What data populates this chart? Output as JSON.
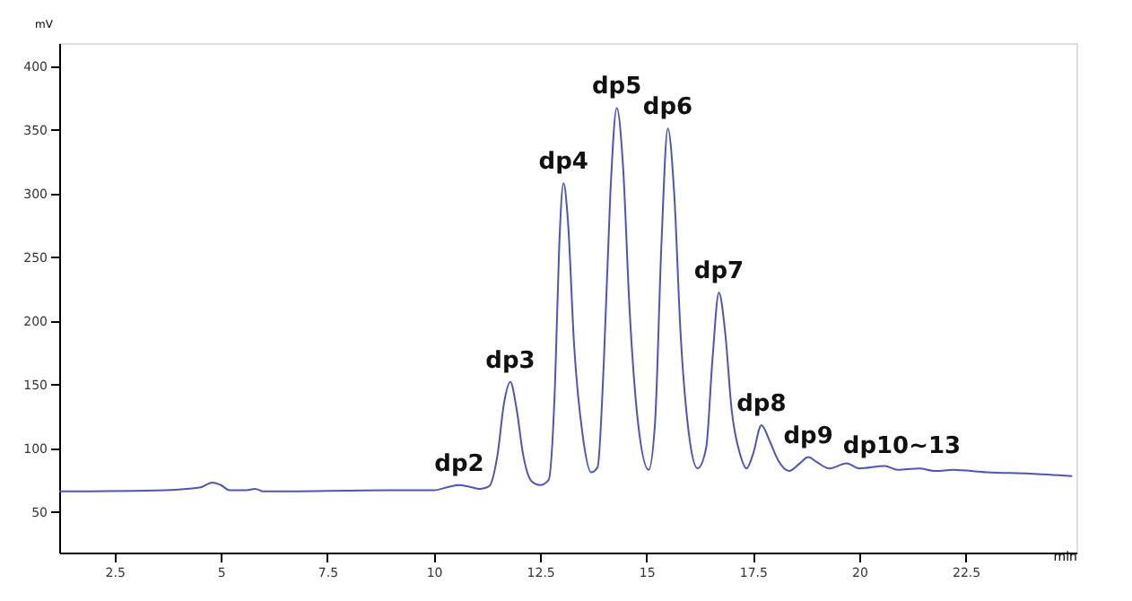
{
  "chart_data": {
    "type": "line",
    "xlabel": "min",
    "ylabel": "mV",
    "x": [
      1.2,
      3.7,
      4.5,
      4.8,
      5.0,
      5.2,
      5.6,
      5.8,
      6.0,
      9.0,
      10.0,
      10.4,
      10.6,
      10.8,
      11.1,
      11.3,
      11.5,
      11.65,
      11.8,
      11.95,
      12.1,
      12.3,
      12.5,
      12.7,
      12.85,
      12.95,
      13.05,
      13.15,
      13.3,
      13.5,
      13.7,
      13.85,
      14.0,
      14.15,
      14.3,
      14.45,
      14.6,
      14.8,
      15.05,
      15.2,
      15.35,
      15.5,
      15.65,
      15.8,
      16.0,
      16.2,
      16.4,
      16.55,
      16.7,
      16.85,
      17.0,
      17.2,
      17.35,
      17.5,
      17.7,
      17.9,
      18.1,
      18.35,
      18.6,
      18.8,
      19.0,
      19.3,
      19.7,
      20.0,
      20.6,
      20.9,
      21.4,
      21.8,
      22.2,
      23.0,
      24.0,
      25.0
    ],
    "series": [
      {
        "color": "#4a55c0",
        "values": [
          66,
          67,
          69,
          73,
          71,
          67,
          67,
          68,
          66,
          67,
          67,
          70,
          71,
          70,
          68,
          70,
          95,
          135,
          152,
          130,
          95,
          74,
          71,
          75,
          150,
          260,
          308,
          280,
          180,
          110,
          81,
          85,
          170,
          300,
          367,
          320,
          210,
          120,
          83,
          120,
          260,
          351,
          300,
          190,
          110,
          84,
          100,
          170,
          222,
          190,
          130,
          95,
          84,
          95,
          118,
          105,
          90,
          82,
          88,
          93,
          89,
          84,
          88,
          84,
          86,
          83,
          84,
          82,
          83,
          81,
          80,
          78
        ]
      }
    ],
    "xlim": [
      1.2,
      25.1
    ],
    "ylim": [
      18,
      418
    ],
    "xticks": [
      2.5,
      5,
      7.5,
      10,
      12.5,
      15,
      17.5,
      20,
      22.5
    ],
    "yticks": [
      50,
      100,
      150,
      200,
      250,
      300,
      350,
      400
    ],
    "grid": false,
    "marker": "none",
    "line_style": "solid",
    "annotations": [
      {
        "text": "dp2",
        "x": 10.6,
        "y": 71
      },
      {
        "text": "dp3",
        "x": 11.8,
        "y": 152
      },
      {
        "text": "dp4",
        "x": 13.05,
        "y": 308
      },
      {
        "text": "dp5",
        "x": 14.3,
        "y": 367
      },
      {
        "text": "dp6",
        "x": 15.5,
        "y": 351
      },
      {
        "text": "dp7",
        "x": 16.7,
        "y": 222
      },
      {
        "text": "dp8",
        "x": 17.7,
        "y": 118
      },
      {
        "text": "dp9",
        "x": 18.8,
        "y": 93
      },
      {
        "text": "dp10~13",
        "x": 21.0,
        "y": 85
      }
    ]
  }
}
